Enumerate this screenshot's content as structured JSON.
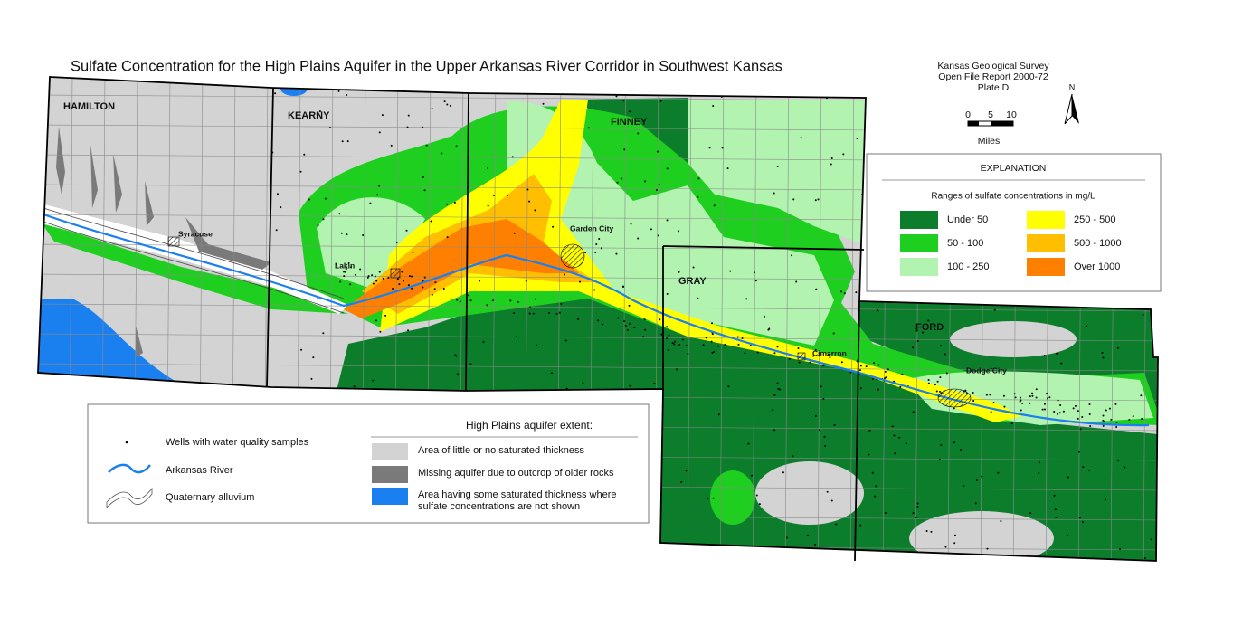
{
  "title": "Sulfate Concentration for the High Plains Aquifer in the Upper Arkansas River Corridor in Southwest Kansas",
  "credits": {
    "org": "Kansas Geological Survey",
    "report": "Open File Report 2000-72",
    "plate": "Plate D"
  },
  "north": "N",
  "scale_bar": {
    "ticks": [
      0,
      5,
      10
    ],
    "unit": "Miles"
  },
  "explanation": {
    "heading": "EXPLANATION",
    "subheading": "Ranges of sulfate concentrations in mg/L",
    "classes": [
      {
        "label": "Under 50",
        "color": "#0b7d2b"
      },
      {
        "label": "50 - 100",
        "color": "#1fcf1f"
      },
      {
        "label": "100 - 250",
        "color": "#b2f3b0"
      },
      {
        "label": "250 - 500",
        "color": "#ffff00"
      },
      {
        "label": "500 - 1000",
        "color": "#ffbf00"
      },
      {
        "label": "Over 1000",
        "color": "#ff7f00"
      }
    ]
  },
  "counties": [
    "HAMILTON",
    "KEARNY",
    "FINNEY",
    "GRAY",
    "FORD"
  ],
  "towns": [
    "Syracuse",
    "Lakin",
    "Garden City",
    "Cimarron",
    "Dodge City"
  ],
  "key": {
    "wells": "Wells with water quality samples",
    "river": "Arkansas River",
    "alluvium": "Quaternary alluvium",
    "extent_heading": "High Plains aquifer extent:",
    "extent": [
      {
        "label": "Area of little or no saturated thickness",
        "color": "#d3d3d3"
      },
      {
        "label": "Missing aquifer due to outcrop of older rocks",
        "color": "#7a7a7a"
      },
      {
        "label": "Area having some saturated thickness where sulfate concentrations are not shown",
        "color": "#1a80f0"
      }
    ]
  }
}
